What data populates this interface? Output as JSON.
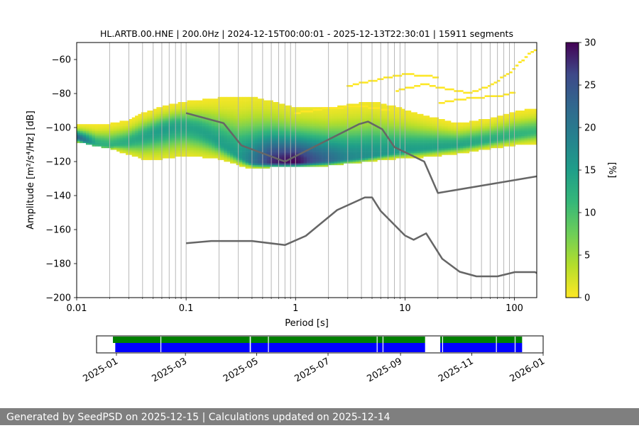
{
  "footer_text": "Generated by SeedPSD on 2025-12-15 | Calculations updated on 2025-12-14",
  "chart_data": [
    {
      "type": "heatmap",
      "title": "HL.ARTB.00.HNE | 200.0Hz | 2024-12-15T00:00:01 - 2025-12-13T22:30:01 | 15911 segments",
      "xlabel": "Period [s]",
      "ylabel": "Amplitude [m²/s⁴/Hz] [dB]",
      "x_scale": "log",
      "xlim": [
        0.01,
        160
      ],
      "ylim": [
        -200,
        -50
      ],
      "x_ticks": [
        0.01,
        0.1,
        1,
        10,
        100
      ],
      "x_tick_labels": [
        "0.01",
        "0.1",
        "1",
        "10",
        "100"
      ],
      "y_ticks": [
        -200,
        -180,
        -160,
        -140,
        -120,
        -100,
        -80,
        -60
      ],
      "y_tick_labels": [
        "−200",
        "−180",
        "−160",
        "−140",
        "−120",
        "−100",
        "−80",
        "−60"
      ],
      "grid": "vertical lines at log minor ticks",
      "colormap": "viridis",
      "colorbar": {
        "label": "[%]",
        "range": [
          0,
          30
        ],
        "ticks": [
          0,
          5,
          10,
          15,
          20,
          25,
          30
        ],
        "tick_labels": [
          "0",
          "5",
          "10",
          "15",
          "20",
          "25",
          "30"
        ]
      },
      "distribution": {
        "mode_curve": [
          [
            0.01,
            -106
          ],
          [
            0.012,
            -108
          ],
          [
            0.015,
            -110
          ],
          [
            0.02,
            -111
          ],
          [
            0.03,
            -109
          ],
          [
            0.04,
            -106
          ],
          [
            0.06,
            -102
          ],
          [
            0.08,
            -100
          ],
          [
            0.1,
            -100
          ],
          [
            0.13,
            -102
          ],
          [
            0.17,
            -106
          ],
          [
            0.22,
            -111
          ],
          [
            0.3,
            -117
          ],
          [
            0.4,
            -121
          ],
          [
            0.6,
            -121
          ],
          [
            1,
            -121
          ],
          [
            2,
            -120
          ],
          [
            4,
            -118
          ],
          [
            8,
            -115
          ],
          [
            15,
            -113
          ],
          [
            30,
            -111
          ],
          [
            60,
            -108
          ],
          [
            100,
            -105
          ],
          [
            160,
            -103
          ]
        ],
        "max_percent_curve": [
          [
            0.01,
            23
          ],
          [
            0.012,
            20
          ],
          [
            0.015,
            13
          ],
          [
            0.02,
            12
          ],
          [
            0.03,
            13
          ],
          [
            0.06,
            15
          ],
          [
            0.1,
            14
          ],
          [
            0.3,
            15
          ],
          [
            0.4,
            20
          ],
          [
            0.6,
            28
          ],
          [
            1,
            30
          ],
          [
            1.5,
            25
          ],
          [
            3,
            18
          ],
          [
            6,
            16
          ],
          [
            10,
            15
          ],
          [
            30,
            14
          ],
          [
            60,
            13
          ],
          [
            100,
            12
          ],
          [
            160,
            11
          ]
        ],
        "lower_curve": [
          [
            0.01,
            -109
          ],
          [
            0.02,
            -113
          ],
          [
            0.04,
            -119
          ],
          [
            0.06,
            -119
          ],
          [
            0.1,
            -117
          ],
          [
            0.2,
            -119
          ],
          [
            0.35,
            -124
          ],
          [
            0.6,
            -124
          ],
          [
            1,
            -123
          ],
          [
            2,
            -123
          ],
          [
            4,
            -121
          ],
          [
            8,
            -119
          ],
          [
            15,
            -118
          ],
          [
            30,
            -116
          ],
          [
            60,
            -113
          ],
          [
            100,
            -111
          ],
          [
            160,
            -110
          ]
        ],
        "upper_curve": [
          [
            0.01,
            -99
          ],
          [
            0.015,
            -99
          ],
          [
            0.02,
            -98
          ],
          [
            0.03,
            -96
          ],
          [
            0.04,
            -92
          ],
          [
            0.06,
            -88
          ],
          [
            0.1,
            -85
          ],
          [
            0.2,
            -83
          ],
          [
            0.4,
            -82
          ],
          [
            0.7,
            -86
          ],
          [
            1,
            -89
          ],
          [
            2,
            -89
          ],
          [
            3,
            -87
          ],
          [
            5,
            -85
          ],
          [
            8,
            -88
          ],
          [
            15,
            -93
          ],
          [
            30,
            -98
          ],
          [
            60,
            -95
          ],
          [
            100,
            -91
          ],
          [
            160,
            -89
          ]
        ]
      },
      "outlier_curves": [
        [
          [
            3,
            -76
          ],
          [
            5,
            -73
          ],
          [
            7,
            -71
          ],
          [
            10,
            -69
          ],
          [
            15,
            -70
          ],
          [
            20,
            -71
          ]
        ],
        [
          [
            8,
            -79
          ],
          [
            15,
            -75
          ],
          [
            30,
            -79
          ],
          [
            40,
            -80
          ],
          [
            60,
            -76
          ],
          [
            100,
            -66
          ],
          [
            130,
            -58
          ],
          [
            160,
            -55
          ]
        ],
        [
          [
            20,
            -86
          ],
          [
            40,
            -83
          ],
          [
            70,
            -82
          ],
          [
            100,
            -80
          ]
        ],
        [
          [
            1,
            -92
          ],
          [
            2,
            -89
          ],
          [
            4,
            -88
          ],
          [
            7,
            -90
          ]
        ]
      ],
      "series": [
        {
          "type": "line",
          "color": "#666666",
          "x": [
            0.1,
            0.22,
            0.32,
            0.8,
            3.8,
            4.6,
            6.2,
            8,
            10,
            15,
            20,
            160
          ],
          "y": [
            -91.5,
            -97.4,
            -110.5,
            -120.0,
            -98.0,
            -96.5,
            -101.0,
            -111.5,
            -114.5,
            -120.0,
            -138.5,
            -128.7
          ]
        },
        {
          "type": "line",
          "color": "#666666",
          "x": [
            0.1,
            0.17,
            0.4,
            0.8,
            1.24,
            2.4,
            4.3,
            5.0,
            6.0,
            10.0,
            12.0,
            15.6,
            21.9,
            31.6,
            45.0,
            70.0,
            101.0,
            154.0,
            160.0
          ],
          "y": [
            -168.0,
            -166.7,
            -166.7,
            -169.1,
            -163.7,
            -148.5,
            -141.1,
            -141.1,
            -149.1,
            -163.5,
            -166.0,
            -162.2,
            -177.2,
            -184.8,
            -187.5,
            -187.5,
            -185.0,
            -185.0,
            -185.5
          ]
        }
      ]
    },
    {
      "type": "bar",
      "title": "",
      "x_scale": "date",
      "xlim": [
        "2024-12-15",
        "2026-01-01"
      ],
      "x_tick_labels": [
        "2025-01",
        "2025-03",
        "2025-05",
        "2025-07",
        "2025-09",
        "2025-11",
        "2026-01"
      ],
      "x_ticks": [
        "2025-01-01",
        "2025-03-01",
        "2025-05-01",
        "2025-07-01",
        "2025-09-01",
        "2025-11-01",
        "2026-01-01"
      ],
      "series": [
        {
          "color": "#008000",
          "values": [
            [
              "2024-12-29",
              "2025-04-23"
            ],
            [
              "2025-04-24",
              "2025-04-24"
            ],
            [
              "2025-04-26",
              "2025-09-21"
            ],
            [
              "2025-10-05",
              "2025-12-13"
            ]
          ]
        },
        {
          "color": "#0000ff",
          "values": [
            [
              "2024-12-31",
              "2025-04-23"
            ],
            [
              "2025-04-24",
              "2025-04-24"
            ],
            [
              "2025-04-26",
              "2025-09-21"
            ],
            [
              "2025-10-05",
              "2025-12-13"
            ]
          ]
        }
      ],
      "gaps": [
        "2025-02-08",
        "2025-05-11",
        "2025-08-12",
        "2025-08-17",
        "2025-09-30",
        "2025-10-07",
        "2025-11-22",
        "2025-12-08"
      ]
    }
  ]
}
